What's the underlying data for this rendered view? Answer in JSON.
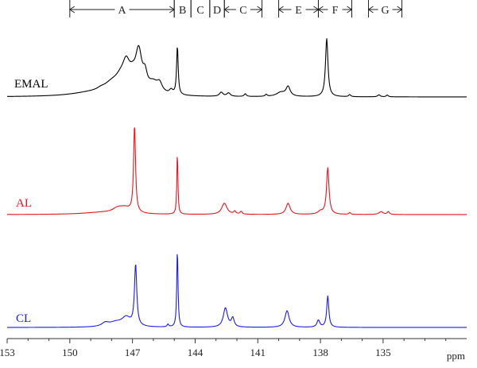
{
  "chart_data": {
    "type": "line",
    "xlabel": "ppm",
    "xlim": [
      153,
      131
    ],
    "x_reversed": true,
    "grid": false,
    "x_ticks": [
      153,
      150,
      147,
      144,
      141,
      138,
      135
    ],
    "x_tick_labels": [
      "153",
      "150",
      "147",
      "144",
      "141",
      "138",
      "135"
    ],
    "regions": [
      {
        "label": "A",
        "from": 150,
        "to": 145.0
      },
      {
        "label": "B",
        "from": 145.0,
        "to": 144.2
      },
      {
        "label": "C",
        "from": 144.2,
        "to": 143.3
      },
      {
        "label": "D",
        "from": 143.3,
        "to": 142.6
      },
      {
        "label": "C",
        "from": 142.6,
        "to": 140.8
      },
      {
        "label": "E",
        "from": 140.0,
        "to": 138.1
      },
      {
        "label": "F",
        "from": 138.1,
        "to": 136.5
      },
      {
        "label": "G",
        "from": 135.7,
        "to": 134.1
      }
    ],
    "series": [
      {
        "name": "EMAL",
        "color": "#000000",
        "baseline": 0.95,
        "scale": 0.9,
        "peaks": [
          [
            149.0,
            0.05,
            1.2
          ],
          [
            148.5,
            0.03,
            0.25
          ],
          [
            148.0,
            0.12,
            0.45
          ],
          [
            147.55,
            0.18,
            0.35
          ],
          [
            147.3,
            0.3,
            0.2
          ],
          [
            147.0,
            0.18,
            0.25
          ],
          [
            146.7,
            0.55,
            0.18
          ],
          [
            146.4,
            0.2,
            0.12
          ],
          [
            146.0,
            0.15,
            0.3
          ],
          [
            145.7,
            0.12,
            0.15
          ],
          [
            145.15,
            0.06,
            0.1
          ],
          [
            144.85,
            0.72,
            0.045
          ],
          [
            142.75,
            0.06,
            0.1
          ],
          [
            142.4,
            0.05,
            0.1
          ],
          [
            141.6,
            0.04,
            0.06
          ],
          [
            140.6,
            0.03,
            0.05
          ],
          [
            139.9,
            0.06,
            0.25
          ],
          [
            139.55,
            0.14,
            0.12
          ],
          [
            137.7,
            0.86,
            0.07
          ],
          [
            136.6,
            0.03,
            0.06
          ],
          [
            135.2,
            0.03,
            0.07
          ],
          [
            134.8,
            0.025,
            0.06
          ]
        ]
      },
      {
        "name": "AL",
        "color": "#e8141e",
        "baseline": 0.03,
        "scale": 1.05,
        "peaks": [
          [
            148.5,
            0.02,
            1.1
          ],
          [
            147.7,
            0.05,
            0.3
          ],
          [
            147.35,
            0.05,
            0.3
          ],
          [
            146.9,
            0.94,
            0.055
          ],
          [
            144.85,
            0.68,
            0.03
          ],
          [
            142.6,
            0.12,
            0.15
          ],
          [
            142.1,
            0.03,
            0.06
          ],
          [
            141.8,
            0.03,
            0.06
          ],
          [
            139.55,
            0.12,
            0.12
          ],
          [
            138.0,
            0.03,
            0.15
          ],
          [
            137.65,
            0.5,
            0.07
          ],
          [
            136.6,
            0.02,
            0.05
          ],
          [
            135.1,
            0.03,
            0.12
          ],
          [
            134.75,
            0.03,
            0.06
          ]
        ]
      },
      {
        "name": "CL",
        "color": "#1b1be6",
        "baseline": 0.02,
        "scale": 1.05,
        "peaks": [
          [
            148.3,
            0.04,
            0.2
          ],
          [
            147.8,
            0.05,
            0.4
          ],
          [
            147.3,
            0.1,
            0.25
          ],
          [
            146.85,
            0.7,
            0.065
          ],
          [
            145.3,
            0.03,
            0.05
          ],
          [
            144.85,
            0.9,
            0.035
          ],
          [
            142.55,
            0.22,
            0.12
          ],
          [
            142.2,
            0.1,
            0.08
          ],
          [
            139.6,
            0.19,
            0.12
          ],
          [
            138.1,
            0.08,
            0.08
          ],
          [
            137.65,
            0.36,
            0.06
          ]
        ]
      }
    ]
  }
}
